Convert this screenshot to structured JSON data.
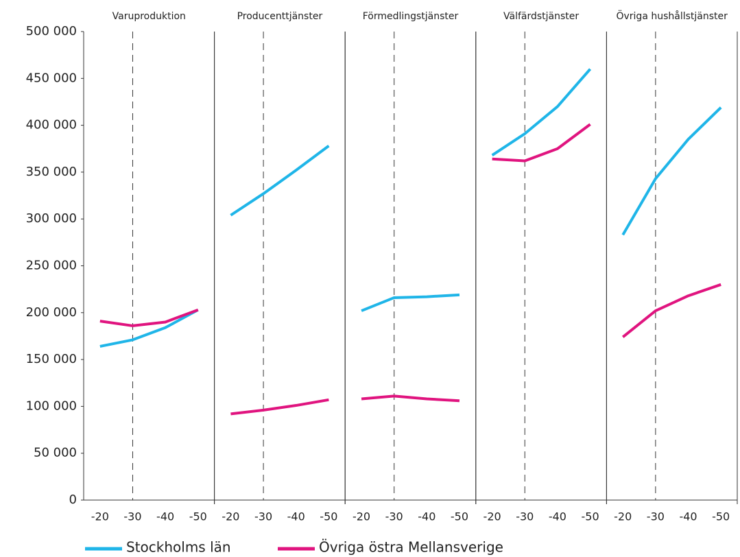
{
  "chart_data": {
    "type": "line",
    "ylim": [
      0,
      500000
    ],
    "yticks": [
      {
        "value": 0,
        "label": "0"
      },
      {
        "value": 50000,
        "label": "50 000"
      },
      {
        "value": 100000,
        "label": "100 000"
      },
      {
        "value": 150000,
        "label": "150 000"
      },
      {
        "value": 200000,
        "label": "200 000"
      },
      {
        "value": 250000,
        "label": "250 000"
      },
      {
        "value": 300000,
        "label": "300 000"
      },
      {
        "value": 350000,
        "label": "350 000"
      },
      {
        "value": 400000,
        "label": "400 000"
      },
      {
        "value": 450000,
        "label": "450 000"
      },
      {
        "value": 500000,
        "label": "500 000"
      }
    ],
    "grid": false,
    "series": [
      {
        "name": "Stockholms län",
        "color": "#1fb5e8"
      },
      {
        "name": "Övriga östra Mellansverige",
        "color": "#e0147f"
      }
    ],
    "panels": [
      {
        "title": "Varuproduktion",
        "categories": [
          "-20",
          "-30",
          "-40",
          "-50"
        ],
        "values": [
          [
            164000,
            171000,
            184000,
            203000
          ],
          [
            191000,
            186000,
            190000,
            203000
          ]
        ]
      },
      {
        "title": "Producenttjänster",
        "categories": [
          "-20",
          "-30",
          "-40",
          "-50"
        ],
        "values": [
          [
            304000,
            327000,
            352000,
            378000
          ],
          [
            92000,
            96000,
            101000,
            107000
          ]
        ]
      },
      {
        "title": "Förmedlingstjänster",
        "categories": [
          "-20",
          "-30",
          "-40",
          "-50"
        ],
        "values": [
          [
            202000,
            216000,
            217000,
            219000
          ],
          [
            108000,
            111000,
            108000,
            106000
          ]
        ]
      },
      {
        "title": "Välfärdstjänster",
        "categories": [
          "-20",
          "-30",
          "-40",
          "-50"
        ],
        "values": [
          [
            368000,
            391000,
            420000,
            460000
          ],
          [
            364000,
            362000,
            375000,
            401000
          ]
        ]
      },
      {
        "title": "Övriga hushållstjänster",
        "categories": [
          "-20",
          "-30",
          "-40",
          "-50"
        ],
        "values": [
          [
            283000,
            343000,
            385000,
            419000
          ],
          [
            174000,
            202000,
            218000,
            230000
          ]
        ]
      }
    ]
  }
}
